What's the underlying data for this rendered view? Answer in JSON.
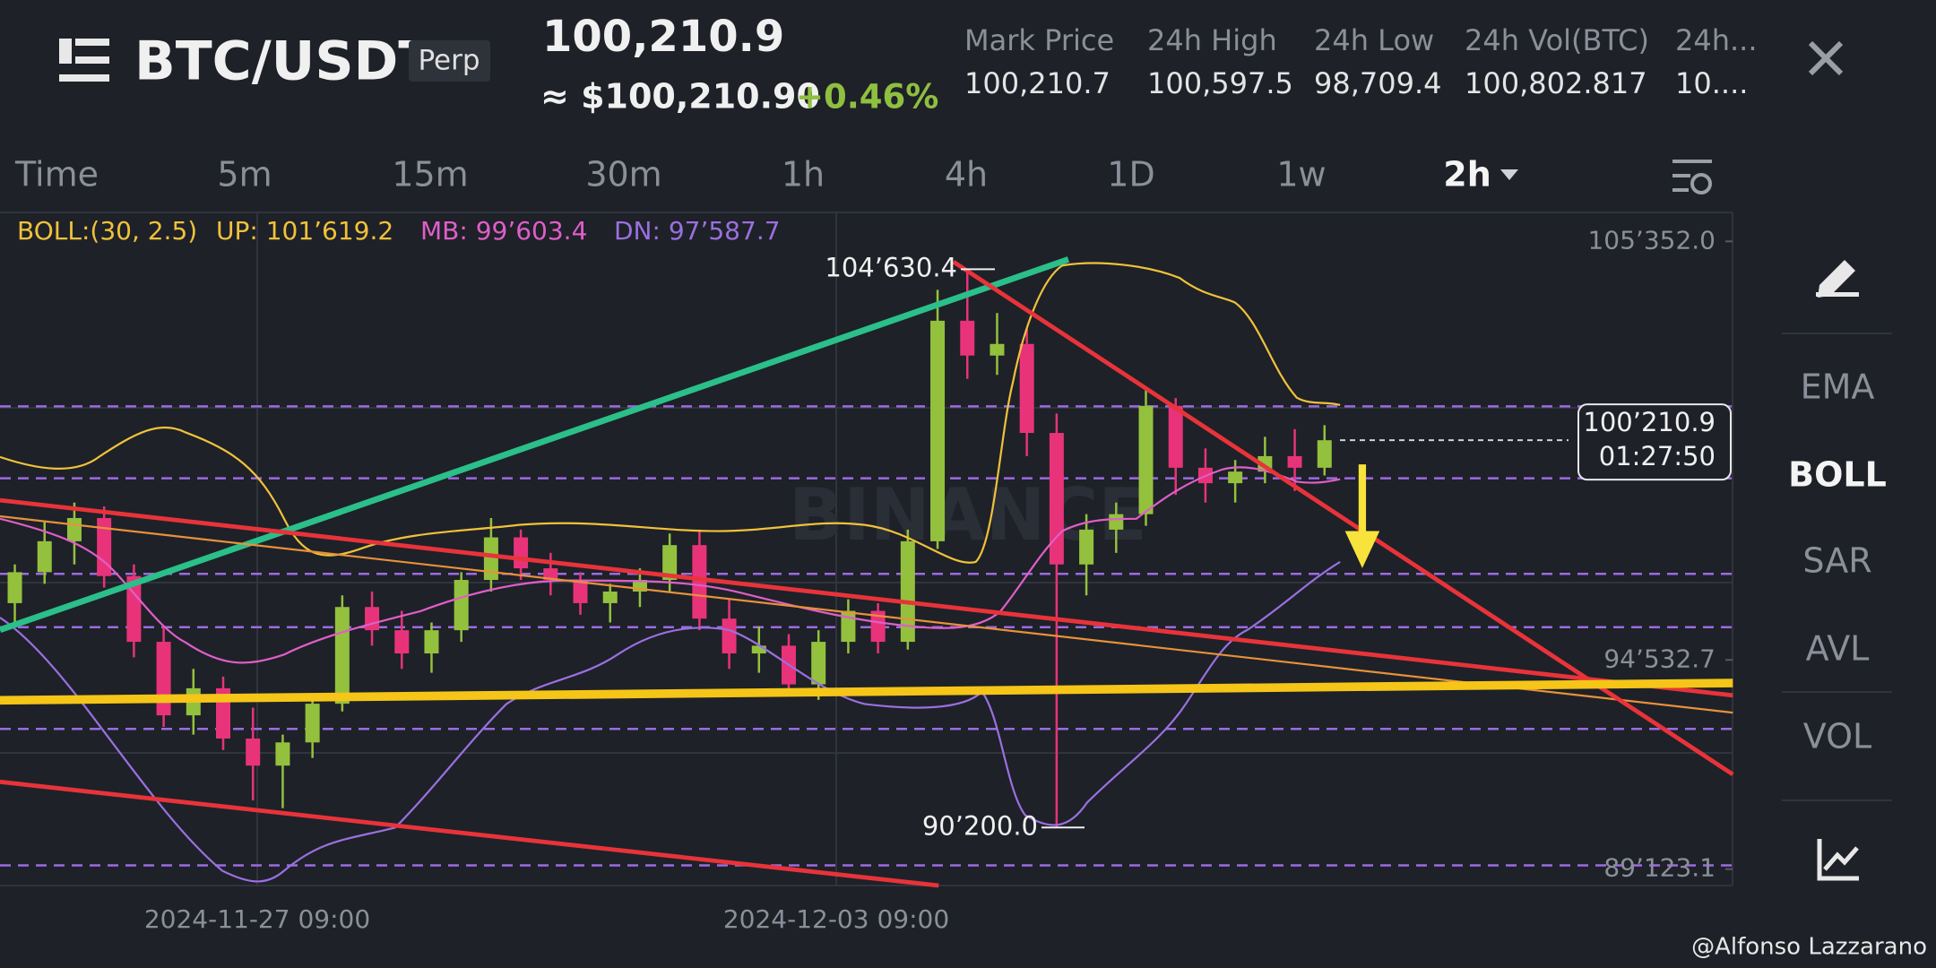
{
  "header": {
    "symbol": "BTC/USDT",
    "contract": "Perp",
    "last_price": "100,210.9",
    "fiat_price": "≈ $100,210.90",
    "change": "+0.46%",
    "stats": [
      {
        "label": "Mark Price",
        "value": "100,210.7"
      },
      {
        "label": "24h High",
        "value": "100,597.5"
      },
      {
        "label": "24h Low",
        "value": "98,709.4"
      },
      {
        "label": "24h Vol(BTC)",
        "value": "100,802.817"
      },
      {
        "label": "24h...",
        "value": "10...."
      }
    ]
  },
  "timeframes": [
    "Time",
    "5m",
    "15m",
    "30m",
    "1h",
    "4h",
    "1D",
    "1w",
    "2h"
  ],
  "indicator": {
    "name": "BOLL:(30, 2.5)",
    "up": "UP: 101’619.2",
    "mb": "MB: 99’603.4",
    "dn": "DN: 97’587.7"
  },
  "chart": {
    "ylim": [
      88700,
      106100
    ],
    "yticks": [
      {
        "value": 105352.0,
        "label": "105’352.0"
      },
      {
        "value": 94532.7,
        "label": "94’532.7"
      },
      {
        "value": 89123.1,
        "label": "89’123.1"
      }
    ],
    "last_price": {
      "value": 100210.9,
      "label": "100’210.9"
    },
    "countdown": "01:27:50",
    "high_mark": {
      "value": 104630.4,
      "label": "104’630.4"
    },
    "low_mark": {
      "value": 90200.0,
      "label": "90’200.0"
    },
    "levels": [
      101087,
      99227,
      96758,
      95379,
      92749,
      89220
    ],
    "x_labels": [
      "2024-11-27 09:00",
      "2024-12-03 09:00"
    ],
    "candles": [
      [
        96000,
        97000,
        95500,
        96800
      ],
      [
        96800,
        98100,
        96500,
        97600
      ],
      [
        97600,
        98600,
        97000,
        98200
      ],
      [
        98200,
        98500,
        96400,
        96700
      ],
      [
        96700,
        97000,
        94600,
        95000
      ],
      [
        95000,
        95400,
        92800,
        93100
      ],
      [
        93100,
        94300,
        92600,
        93800
      ],
      [
        93800,
        94100,
        92200,
        92500
      ],
      [
        92500,
        93300,
        90900,
        91800
      ],
      [
        91800,
        92600,
        90700,
        92400
      ],
      [
        92400,
        93600,
        92000,
        93400
      ],
      [
        93400,
        96200,
        93200,
        95900
      ],
      [
        95900,
        96300,
        94900,
        95300
      ],
      [
        95300,
        95800,
        94300,
        94700
      ],
      [
        94700,
        95500,
        94200,
        95300
      ],
      [
        95300,
        96800,
        95000,
        96600
      ],
      [
        96600,
        98200,
        96300,
        97700
      ],
      [
        97700,
        97900,
        96600,
        96900
      ],
      [
        96900,
        97300,
        96200,
        96600
      ],
      [
        96600,
        96800,
        95700,
        96000
      ],
      [
        96000,
        96500,
        95500,
        96300
      ],
      [
        96300,
        96900,
        95900,
        96600
      ],
      [
        96600,
        97800,
        96300,
        97500
      ],
      [
        97500,
        97900,
        95300,
        95600
      ],
      [
        95600,
        96100,
        94300,
        94700
      ],
      [
        94700,
        95400,
        94200,
        94900
      ],
      [
        94900,
        95200,
        93600,
        93900
      ],
      [
        93900,
        95300,
        93500,
        95000
      ],
      [
        95000,
        96100,
        94700,
        95800
      ],
      [
        95800,
        96000,
        94700,
        95000
      ],
      [
        95000,
        97900,
        94800,
        97600
      ],
      [
        97600,
        104100,
        97400,
        103300
      ],
      [
        103300,
        104630.4,
        101800,
        102400
      ],
      [
        102400,
        103500,
        101900,
        102700
      ],
      [
        102700,
        103100,
        99800,
        100400
      ],
      [
        100400,
        100900,
        90200,
        97000
      ],
      [
        97000,
        98300,
        96200,
        97900
      ],
      [
        97900,
        98600,
        97300,
        98300
      ],
      [
        98300,
        101500,
        98000,
        101100
      ],
      [
        101100,
        101300,
        98800,
        99500
      ],
      [
        99500,
        100000,
        98600,
        99100
      ],
      [
        99100,
        99700,
        98600,
        99400
      ],
      [
        99400,
        100300,
        99100,
        99800
      ],
      [
        99800,
        100500,
        98900,
        99500
      ],
      [
        99500,
        100600,
        99300,
        100210.9
      ]
    ]
  },
  "sidebar": [
    "EMA",
    "BOLL",
    "SAR",
    "AVL",
    "VOL"
  ],
  "watermark": "BINANCE",
  "footer": "@Alfonso Lazzarano"
}
